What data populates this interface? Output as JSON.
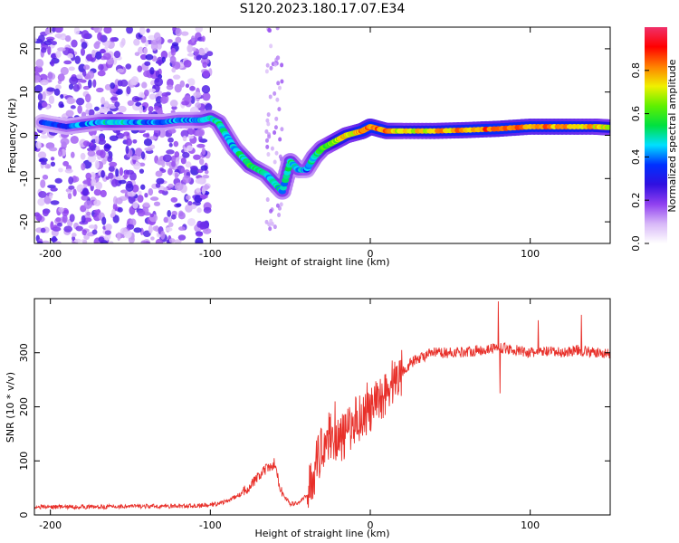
{
  "title": "S120.2023.180.17.07.E34",
  "chart_data": [
    {
      "type": "heatmap",
      "xlabel": "Height of straight line (km)",
      "ylabel": "Frequency (Hz)",
      "xlim": [
        -210,
        150
      ],
      "ylim": [
        -25,
        25
      ],
      "xticks": [
        -200,
        -100,
        0,
        100
      ],
      "yticks": [
        -20,
        -10,
        0,
        10,
        20
      ],
      "colorbar": {
        "label": "Normalized spectral amplitude",
        "range": [
          0,
          1
        ],
        "ticks": [
          "0.0",
          "0.2",
          "0.4",
          "0.6",
          "0.8"
        ],
        "tick_values": [
          0,
          0.2,
          0.4,
          0.6,
          0.8
        ],
        "colormap": [
          "#ffffff",
          "#d8b8f8",
          "#9040f0",
          "#3010e0",
          "#0030ff",
          "#00e0ff",
          "#00e040",
          "#60f000",
          "#f0f000",
          "#ff8000",
          "#ff0000",
          "#f0306a"
        ]
      },
      "ridge": {
        "x": [
          -205,
          -190,
          -180,
          -170,
          -160,
          -150,
          -140,
          -130,
          -120,
          -110,
          -105,
          -100,
          -95,
          -90,
          -85,
          -80,
          -75,
          -70,
          -65,
          -60,
          -55,
          -50,
          -45,
          -40,
          -35,
          -30,
          -25,
          -20,
          -15,
          -10,
          -5,
          0,
          10,
          20,
          40,
          60,
          80,
          100,
          120,
          140,
          150
        ],
        "y": [
          3,
          2,
          2.5,
          3,
          3,
          3,
          3,
          3,
          3.5,
          3.5,
          3.5,
          4,
          3,
          0,
          -3,
          -5,
          -7,
          -8,
          -9,
          -11,
          -13,
          -6,
          -8,
          -8,
          -5,
          -3,
          -2,
          -1,
          0,
          0.5,
          1,
          2,
          1,
          1,
          1,
          1.2,
          1.5,
          2,
          2,
          2,
          1.8
        ],
        "amplitude": [
          0.3,
          0.35,
          0.4,
          0.4,
          0.5,
          0.45,
          0.4,
          0.4,
          0.4,
          0.4,
          0.45,
          0.5,
          0.5,
          0.45,
          0.45,
          0.5,
          0.55,
          0.5,
          0.45,
          0.5,
          0.45,
          0.5,
          0.45,
          0.4,
          0.5,
          0.55,
          0.6,
          0.7,
          0.75,
          0.7,
          0.8,
          0.85,
          0.8,
          0.7,
          0.75,
          0.8,
          0.85,
          0.8,
          0.8,
          0.75,
          0.7
        ]
      },
      "noise_region_x": [
        -210,
        -100
      ]
    },
    {
      "type": "line",
      "xlabel": "Height of straight line (km)",
      "ylabel": "SNR (10 * v/v)",
      "xlim": [
        -210,
        150
      ],
      "ylim": [
        0,
        400
      ],
      "xticks": [
        -200,
        -100,
        0,
        100
      ],
      "yticks": [
        0,
        100,
        200,
        300
      ],
      "color": "#e8302a",
      "x": [
        -210,
        -190,
        -170,
        -150,
        -130,
        -110,
        -100,
        -90,
        -80,
        -70,
        -65,
        -60,
        -55,
        -50,
        -45,
        -40,
        -35,
        -30,
        -25,
        -20,
        -15,
        -10,
        -5,
        0,
        5,
        10,
        15,
        20,
        25,
        30,
        40,
        50,
        60,
        70,
        80,
        90,
        100,
        110,
        120,
        130,
        140,
        150
      ],
      "y": [
        15,
        15,
        15,
        16,
        16,
        17,
        18,
        25,
        40,
        70,
        85,
        90,
        40,
        20,
        22,
        35,
        80,
        130,
        150,
        135,
        150,
        175,
        185,
        190,
        210,
        230,
        250,
        265,
        280,
        290,
        300,
        300,
        302,
        305,
        310,
        305,
        300,
        302,
        300,
        305,
        300,
        298
      ],
      "spikes": [
        [
          -60,
          105
        ],
        [
          -22,
          210
        ],
        [
          -2,
          245
        ],
        [
          80,
          395
        ],
        [
          81,
          225
        ],
        [
          105,
          360
        ],
        [
          132,
          370
        ]
      ]
    }
  ]
}
